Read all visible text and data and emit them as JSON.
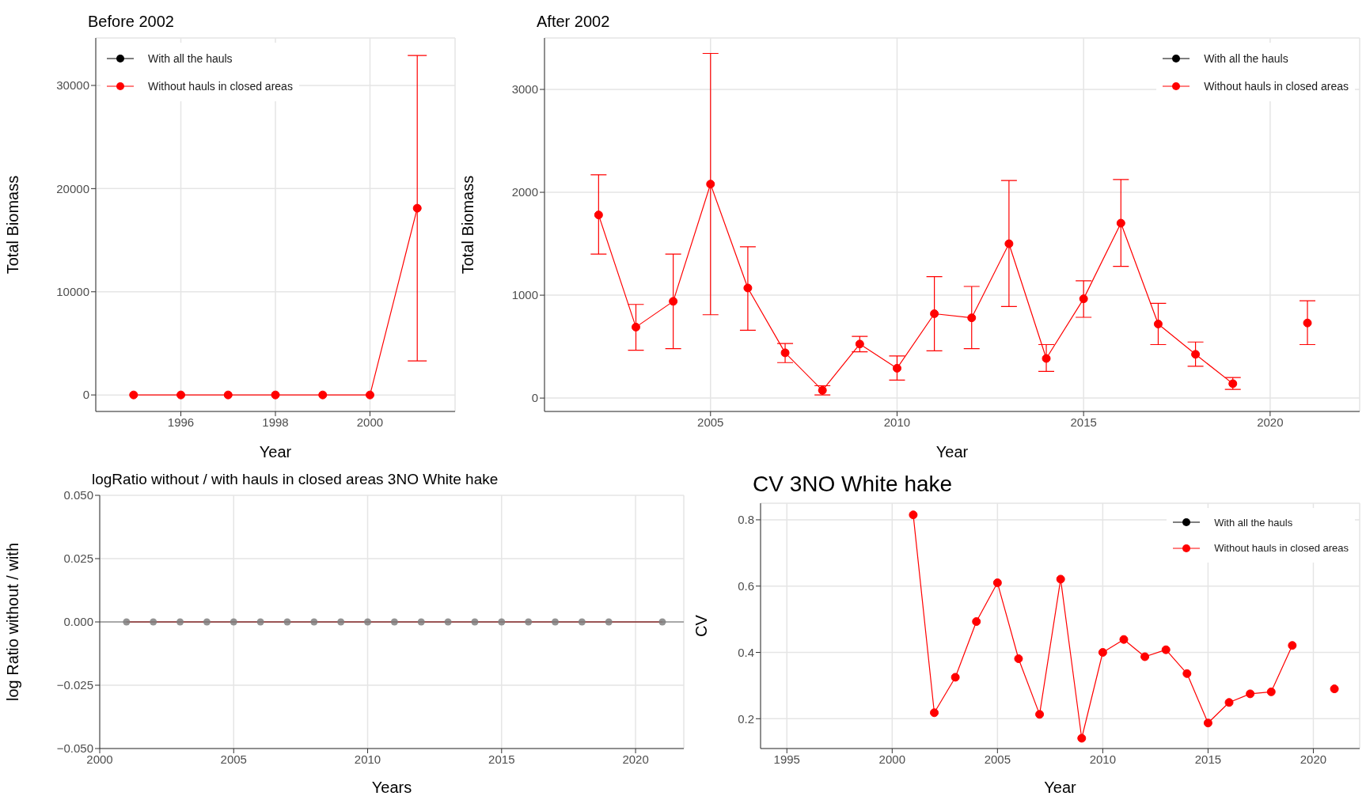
{
  "chart_data": [
    {
      "type": "line",
      "title": "Before 2002",
      "xlabel": "Year",
      "ylabel": "Total Biomass",
      "x": [
        1995,
        1996,
        1997,
        1998,
        1999,
        2000,
        2001
      ],
      "series": [
        {
          "name": "With all the hauls",
          "color": "#000000",
          "values": [
            null,
            null,
            null,
            null,
            null,
            null,
            null
          ]
        },
        {
          "name": "Without hauls in closed areas",
          "color": "#ff0000",
          "values": [
            0,
            0,
            0,
            0,
            0,
            0,
            18100
          ],
          "errors": [
            null,
            null,
            null,
            null,
            null,
            null,
            [
              3300,
              32900
            ]
          ]
        }
      ],
      "xlim": [
        1994.2,
        2001.8
      ],
      "xticks": [
        1996,
        1998,
        2000
      ],
      "ylim": [
        -1600,
        34600
      ],
      "yticks": [
        0,
        10000,
        20000,
        30000
      ],
      "grid": true,
      "legend": "top left",
      "marker": "circle"
    },
    {
      "type": "line",
      "title": "After 2002",
      "xlabel": "Year",
      "ylabel": "Total Biomass",
      "x": [
        2002,
        2003,
        2004,
        2005,
        2006,
        2007,
        2008,
        2009,
        2010,
        2011,
        2012,
        2013,
        2014,
        2015,
        2016,
        2017,
        2018,
        2019,
        2020,
        2021
      ],
      "series": [
        {
          "name": "With all the hauls",
          "color": "#000000",
          "values": [
            null,
            null,
            null,
            null,
            null,
            null,
            null,
            null,
            null,
            null,
            null,
            null,
            null,
            null,
            null,
            null,
            null,
            null,
            null,
            null
          ]
        },
        {
          "name": "Without hauls in closed areas",
          "color": "#ff0000",
          "values": [
            1780,
            690,
            940,
            2080,
            1070,
            440,
            75,
            525,
            290,
            820,
            780,
            1500,
            385,
            965,
            1700,
            720,
            425,
            140,
            null,
            730
          ],
          "errors": [
            [
              1400,
              2170
            ],
            [
              465,
              910
            ],
            [
              480,
              1400
            ],
            [
              810,
              3350
            ],
            [
              660,
              1470
            ],
            [
              345,
              530
            ],
            [
              30,
              120
            ],
            [
              450,
              600
            ],
            [
              175,
              410
            ],
            [
              460,
              1180
            ],
            [
              480,
              1085
            ],
            [
              890,
              2115
            ],
            [
              260,
              520
            ],
            [
              785,
              1140
            ],
            [
              1280,
              2125
            ],
            [
              520,
              920
            ],
            [
              310,
              545
            ],
            [
              85,
              200
            ],
            null,
            [
              520,
              945
            ]
          ]
        }
      ],
      "xlim": [
        2000.55,
        2022.4
      ],
      "xticks": [
        2005,
        2010,
        2015,
        2020
      ],
      "ylim": [
        -130,
        3500
      ],
      "yticks": [
        0,
        1000,
        2000,
        3000
      ],
      "grid": true,
      "legend": "top right",
      "marker": "circle"
    },
    {
      "type": "line",
      "title": "logRatio without / with hauls in closed areas 3NO White hake",
      "xlabel": "Years",
      "ylabel": "log Ratio without / with",
      "x": [
        2001,
        2002,
        2003,
        2004,
        2005,
        2006,
        2007,
        2008,
        2009,
        2010,
        2011,
        2012,
        2013,
        2014,
        2015,
        2016,
        2017,
        2018,
        2019,
        2021
      ],
      "series": [
        {
          "type": "line",
          "color": "#8b0000",
          "values": [
            0,
            0,
            0,
            0,
            0,
            0,
            0,
            0,
            0,
            0,
            0,
            0,
            0,
            0,
            0,
            0,
            0,
            0,
            0,
            0
          ]
        },
        {
          "type": "scatter",
          "color": "#808080",
          "values": [
            0,
            0,
            0,
            0,
            0,
            0,
            0,
            0,
            0,
            0,
            0,
            0,
            0,
            0,
            0,
            0,
            0,
            0,
            0,
            0
          ]
        }
      ],
      "ref_lines": [
        {
          "axis": "y",
          "value": 0,
          "color": "#666666"
        }
      ],
      "xlim": [
        2000,
        2021.8
      ],
      "xticks": [
        2000,
        2005,
        2010,
        2015,
        2020
      ],
      "ylim": [
        -0.05,
        0.05
      ],
      "yticks": [
        {
          "value": -0.05,
          "label": "−0.050"
        },
        {
          "value": -0.025,
          "label": "−0.025"
        },
        {
          "value": 0,
          "label": "0.000"
        },
        {
          "value": 0.025,
          "label": "0.025"
        },
        {
          "value": 0.05,
          "label": "0.050"
        }
      ],
      "grid": true
    },
    {
      "type": "line",
      "title": "CV 3NO White hake",
      "xlabel": "Year",
      "ylabel": "CV",
      "x": [
        2001,
        2002,
        2003,
        2004,
        2005,
        2006,
        2007,
        2008,
        2009,
        2010,
        2011,
        2012,
        2013,
        2014,
        2015,
        2016,
        2017,
        2018,
        2019,
        2020,
        2021
      ],
      "series": [
        {
          "name": "With all the hauls",
          "color": "#000000",
          "values": [
            null,
            null,
            null,
            null,
            null,
            null,
            null,
            null,
            null,
            null,
            null,
            null,
            null,
            null,
            null,
            null,
            null,
            null,
            null,
            null,
            null
          ]
        },
        {
          "name": "Without hauls in closed areas",
          "color": "#ff0000",
          "values": [
            0.815,
            0.218,
            0.325,
            0.493,
            0.61,
            0.381,
            0.213,
            0.621,
            0.141,
            0.4,
            0.439,
            0.387,
            0.408,
            0.336,
            0.187,
            0.249,
            0.275,
            0.281,
            0.421,
            null,
            0.29
          ]
        }
      ],
      "xlim": [
        1993.75,
        2022.2
      ],
      "xticks": [
        1995,
        2000,
        2005,
        2010,
        2015,
        2020
      ],
      "ylim": [
        0.11,
        0.85
      ],
      "yticks": [
        0.2,
        0.4,
        0.6,
        0.8
      ],
      "grid": true,
      "legend": "top right",
      "marker": "circle"
    }
  ]
}
